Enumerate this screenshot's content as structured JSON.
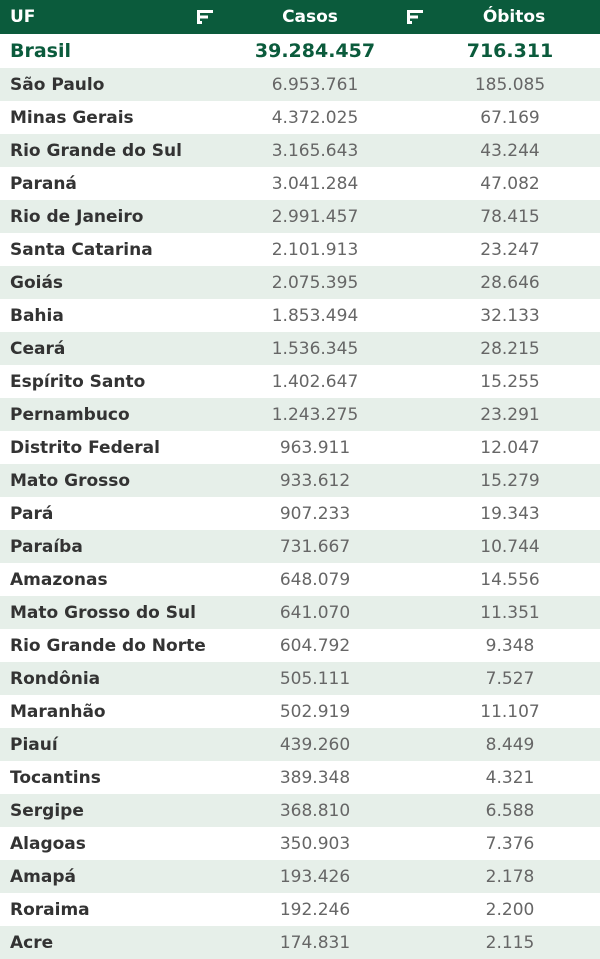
{
  "header": {
    "uf": "UF",
    "casos": "Casos",
    "obitos": "Óbitos",
    "sort_icon": "sort-bars-icon"
  },
  "colors": {
    "header_bg": "#0b5b3c",
    "stripe": "#e6efe9",
    "total_text": "#0b5b3c"
  },
  "total": {
    "uf": "Brasil",
    "casos": "39.284.457",
    "obitos": "716.311"
  },
  "rows": [
    {
      "uf": "São Paulo",
      "casos": "6.953.761",
      "obitos": "185.085"
    },
    {
      "uf": "Minas Gerais",
      "casos": "4.372.025",
      "obitos": "67.169"
    },
    {
      "uf": "Rio Grande do Sul",
      "casos": "3.165.643",
      "obitos": "43.244"
    },
    {
      "uf": "Paraná",
      "casos": "3.041.284",
      "obitos": "47.082"
    },
    {
      "uf": "Rio de Janeiro",
      "casos": "2.991.457",
      "obitos": "78.415"
    },
    {
      "uf": "Santa Catarina",
      "casos": "2.101.913",
      "obitos": "23.247"
    },
    {
      "uf": "Goiás",
      "casos": "2.075.395",
      "obitos": "28.646"
    },
    {
      "uf": "Bahia",
      "casos": "1.853.494",
      "obitos": "32.133"
    },
    {
      "uf": "Ceará",
      "casos": "1.536.345",
      "obitos": "28.215"
    },
    {
      "uf": "Espírito Santo",
      "casos": "1.402.647",
      "obitos": "15.255"
    },
    {
      "uf": "Pernambuco",
      "casos": "1.243.275",
      "obitos": "23.291"
    },
    {
      "uf": "Distrito Federal",
      "casos": "963.911",
      "obitos": "12.047"
    },
    {
      "uf": "Mato Grosso",
      "casos": "933.612",
      "obitos": "15.279"
    },
    {
      "uf": "Pará",
      "casos": "907.233",
      "obitos": "19.343"
    },
    {
      "uf": "Paraíba",
      "casos": "731.667",
      "obitos": "10.744"
    },
    {
      "uf": "Amazonas",
      "casos": "648.079",
      "obitos": "14.556"
    },
    {
      "uf": "Mato Grosso do Sul",
      "casos": "641.070",
      "obitos": "11.351"
    },
    {
      "uf": "Rio Grande do Norte",
      "casos": "604.792",
      "obitos": "9.348"
    },
    {
      "uf": "Rondônia",
      "casos": "505.111",
      "obitos": "7.527"
    },
    {
      "uf": "Maranhão",
      "casos": "502.919",
      "obitos": "11.107"
    },
    {
      "uf": "Piauí",
      "casos": "439.260",
      "obitos": "8.449"
    },
    {
      "uf": "Tocantins",
      "casos": "389.348",
      "obitos": "4.321"
    },
    {
      "uf": "Sergipe",
      "casos": "368.810",
      "obitos": "6.588"
    },
    {
      "uf": "Alagoas",
      "casos": "350.903",
      "obitos": "7.376"
    },
    {
      "uf": "Amapá",
      "casos": "193.426",
      "obitos": "2.178"
    },
    {
      "uf": "Roraima",
      "casos": "192.246",
      "obitos": "2.200"
    },
    {
      "uf": "Acre",
      "casos": "174.831",
      "obitos": "2.115"
    }
  ]
}
